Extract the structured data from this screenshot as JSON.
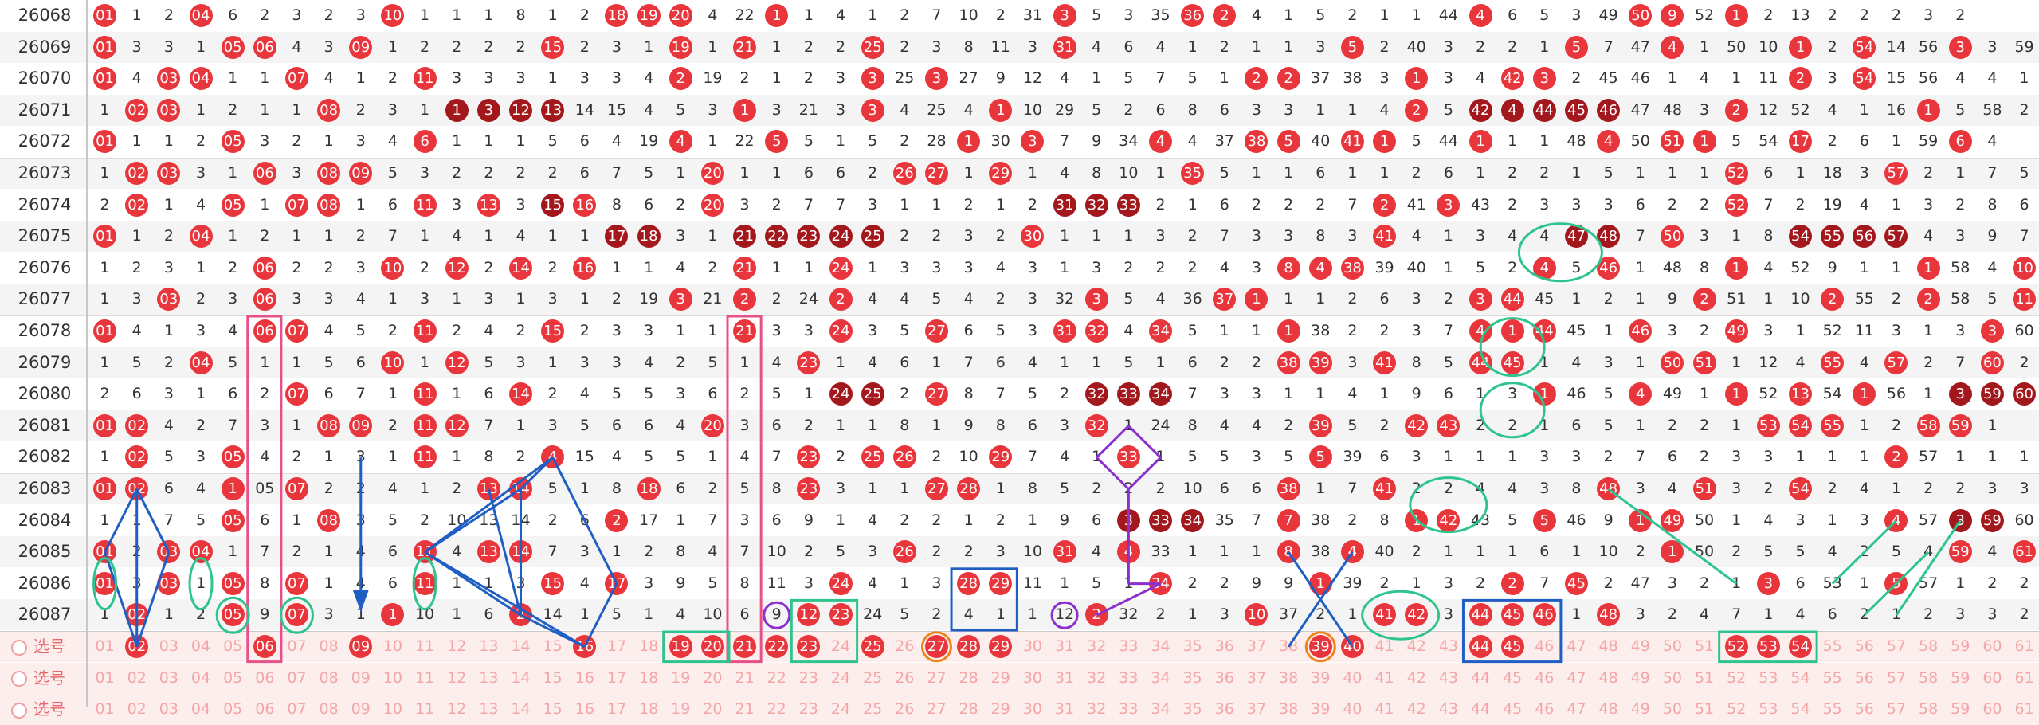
{
  "periods": [
    "26068",
    "26069",
    "26070",
    "26071",
    "26072",
    "26073",
    "26074",
    "26075",
    "26076",
    "26077",
    "26078",
    "26079",
    "26080",
    "26081",
    "26082",
    "26083",
    "26084",
    "26085",
    "26086",
    "26087"
  ],
  "rows": [
    [
      "01",
      "1",
      "2",
      "04",
      "6",
      "2",
      "3",
      "2",
      "3",
      "10",
      "1",
      "1",
      "1",
      "8",
      "1",
      "2",
      "18",
      "19",
      "20",
      "4",
      "22",
      "1",
      "1",
      "4",
      "1",
      "2",
      "7",
      "10",
      "2",
      "31",
      "3",
      "5",
      "3",
      "35",
      "36",
      "2",
      "4",
      "1",
      "5",
      "2",
      "1",
      "1",
      "44",
      "4",
      "6",
      "5",
      "3",
      "49",
      "50",
      "9",
      "52",
      "1",
      "2",
      "13",
      "2",
      "2",
      "2",
      "3",
      "2"
    ],
    [
      "01",
      "3",
      "3",
      "1",
      "05",
      "06",
      "4",
      "3",
      "09",
      "1",
      "2",
      "2",
      "2",
      "2",
      "15",
      "2",
      "3",
      "1",
      "19",
      "1",
      "21",
      "1",
      "2",
      "2",
      "25",
      "2",
      "3",
      "8",
      "11",
      "3",
      "31",
      "4",
      "6",
      "4",
      "1",
      "2",
      "1",
      "1",
      "3",
      "5",
      "2",
      "40",
      "3",
      "2",
      "2",
      "1",
      "5",
      "7",
      "47",
      "4",
      "1",
      "50",
      "10",
      "1",
      "2",
      "54",
      "14",
      "56",
      "3",
      "3",
      "59",
      "3",
      "1"
    ],
    [
      "01",
      "4",
      "03",
      "04",
      "1",
      "1",
      "07",
      "4",
      "1",
      "2",
      "11",
      "3",
      "3",
      "3",
      "1",
      "3",
      "3",
      "4",
      "2",
      "19",
      "2",
      "1",
      "2",
      "3",
      "3",
      "25",
      "3",
      "27",
      "9",
      "12",
      "4",
      "1",
      "5",
      "7",
      "5",
      "1",
      "2",
      "2",
      "37",
      "38",
      "3",
      "1",
      "3",
      "4",
      "42",
      "3",
      "2",
      "45",
      "46",
      "1",
      "4",
      "1",
      "11",
      "2",
      "3",
      "54",
      "15",
      "56",
      "4",
      "4",
      "1",
      "4",
      "2"
    ],
    [
      "1",
      "02",
      "03",
      "1",
      "2",
      "1",
      "1",
      "08",
      "2",
      "3",
      "1",
      "1",
      "3",
      "12",
      "13",
      "14",
      "15",
      "4",
      "5",
      "3",
      "1",
      "3",
      "21",
      "3",
      "3",
      "4",
      "25",
      "4",
      "1",
      "10",
      "29",
      "5",
      "2",
      "6",
      "8",
      "6",
      "3",
      "3",
      "1",
      "1",
      "4",
      "2",
      "5",
      "42",
      "4",
      "44",
      "45",
      "46",
      "47",
      "48",
      "3",
      "2",
      "12",
      "52",
      "4",
      "1",
      "16",
      "1",
      "5",
      "58",
      "2",
      "5",
      "3"
    ],
    [
      "01",
      "1",
      "1",
      "2",
      "05",
      "3",
      "2",
      "1",
      "3",
      "4",
      "6",
      "1",
      "1",
      "1",
      "5",
      "6",
      "4",
      "19",
      "4",
      "1",
      "22",
      "5",
      "5",
      "1",
      "5",
      "2",
      "28",
      "1",
      "30",
      "3",
      "7",
      "9",
      "34",
      "4",
      "4",
      "37",
      "38",
      "5",
      "40",
      "41",
      "1",
      "5",
      "44",
      "1",
      "1",
      "1",
      "48",
      "4",
      "50",
      "51",
      "1",
      "5",
      "54",
      "17",
      "2",
      "6",
      "1",
      "59",
      "6",
      "4"
    ],
    [
      "1",
      "02",
      "03",
      "3",
      "1",
      "06",
      "3",
      "08",
      "09",
      "5",
      "3",
      "2",
      "2",
      "2",
      "2",
      "6",
      "7",
      "5",
      "1",
      "20",
      "1",
      "1",
      "6",
      "6",
      "2",
      "26",
      "27",
      "1",
      "29",
      "1",
      "4",
      "8",
      "10",
      "1",
      "35",
      "5",
      "1",
      "1",
      "6",
      "1",
      "1",
      "2",
      "6",
      "1",
      "2",
      "2",
      "1",
      "5",
      "1",
      "1",
      "1",
      "52",
      "6",
      "1",
      "18",
      "3",
      "57",
      "2",
      "1",
      "7",
      "5"
    ],
    [
      "2",
      "02",
      "1",
      "4",
      "05",
      "1",
      "07",
      "08",
      "1",
      "6",
      "11",
      "3",
      "13",
      "3",
      "15",
      "16",
      "8",
      "6",
      "2",
      "20",
      "3",
      "2",
      "7",
      "7",
      "3",
      "1",
      "1",
      "2",
      "1",
      "2",
      "31",
      "32",
      "33",
      "2",
      "1",
      "6",
      "2",
      "2",
      "2",
      "7",
      "2",
      "41",
      "3",
      "43",
      "2",
      "3",
      "3",
      "3",
      "6",
      "2",
      "2",
      "52",
      "7",
      "2",
      "19",
      "4",
      "1",
      "3",
      "2",
      "8",
      "6"
    ],
    [
      "01",
      "1",
      "2",
      "04",
      "1",
      "2",
      "1",
      "1",
      "2",
      "7",
      "1",
      "4",
      "1",
      "4",
      "1",
      "1",
      "17",
      "18",
      "3",
      "1",
      "21",
      "22",
      "23",
      "24",
      "25",
      "2",
      "2",
      "3",
      "2",
      "30",
      "1",
      "1",
      "1",
      "3",
      "2",
      "7",
      "3",
      "3",
      "8",
      "3",
      "41",
      "4",
      "1",
      "3",
      "4",
      "4",
      "47",
      "48",
      "7",
      "50",
      "3",
      "1",
      "8",
      "54",
      "55",
      "56",
      "57",
      "4",
      "3",
      "9",
      "7"
    ],
    [
      "1",
      "2",
      "3",
      "1",
      "2",
      "06",
      "2",
      "2",
      "3",
      "10",
      "2",
      "12",
      "2",
      "14",
      "2",
      "16",
      "1",
      "1",
      "4",
      "2",
      "21",
      "1",
      "1",
      "24",
      "1",
      "3",
      "3",
      "3",
      "4",
      "3",
      "1",
      "3",
      "2",
      "2",
      "2",
      "4",
      "3",
      "8",
      "4",
      "38",
      "39",
      "40",
      "1",
      "5",
      "2",
      "4",
      "5",
      "46",
      "1",
      "48",
      "8",
      "1",
      "4",
      "52",
      "9",
      "1",
      "1",
      "1",
      "58",
      "4",
      "10",
      "61"
    ],
    [
      "1",
      "3",
      "03",
      "2",
      "3",
      "06",
      "3",
      "3",
      "4",
      "1",
      "3",
      "1",
      "3",
      "1",
      "3",
      "1",
      "2",
      "19",
      "3",
      "21",
      "2",
      "2",
      "24",
      "2",
      "4",
      "4",
      "5",
      "4",
      "2",
      "3",
      "32",
      "3",
      "5",
      "4",
      "36",
      "37",
      "1",
      "1",
      "1",
      "2",
      "6",
      "3",
      "2",
      "3",
      "44",
      "45",
      "1",
      "2",
      "1",
      "9",
      "2",
      "51",
      "1",
      "10",
      "2",
      "55",
      "2",
      "2",
      "58",
      "5",
      "11",
      "61"
    ],
    [
      "01",
      "4",
      "1",
      "3",
      "4",
      "06",
      "07",
      "4",
      "5",
      "2",
      "11",
      "2",
      "4",
      "2",
      "15",
      "2",
      "3",
      "3",
      "1",
      "1",
      "21",
      "3",
      "3",
      "24",
      "3",
      "5",
      "27",
      "6",
      "5",
      "3",
      "31",
      "32",
      "4",
      "34",
      "5",
      "1",
      "1",
      "1",
      "38",
      "2",
      "2",
      "3",
      "7",
      "4",
      "1",
      "44",
      "45",
      "1",
      "46",
      "3",
      "2",
      "49",
      "3",
      "1",
      "52",
      "11",
      "3",
      "1",
      "3",
      "3",
      "60",
      "1"
    ],
    [
      "1",
      "5",
      "2",
      "04",
      "5",
      "1",
      "1",
      "5",
      "6",
      "10",
      "1",
      "12",
      "5",
      "3",
      "1",
      "3",
      "3",
      "4",
      "2",
      "5",
      "1",
      "4",
      "23",
      "1",
      "4",
      "6",
      "1",
      "7",
      "6",
      "4",
      "1",
      "1",
      "5",
      "1",
      "6",
      "2",
      "2",
      "38",
      "39",
      "3",
      "41",
      "8",
      "5",
      "44",
      "45",
      "1",
      "4",
      "3",
      "1",
      "50",
      "51",
      "1",
      "12",
      "4",
      "55",
      "4",
      "57",
      "2",
      "7",
      "60",
      "2"
    ],
    [
      "2",
      "6",
      "3",
      "1",
      "6",
      "2",
      "07",
      "6",
      "7",
      "1",
      "11",
      "1",
      "6",
      "14",
      "2",
      "4",
      "5",
      "5",
      "3",
      "6",
      "2",
      "5",
      "1",
      "24",
      "25",
      "2",
      "27",
      "8",
      "7",
      "5",
      "2",
      "32",
      "33",
      "34",
      "7",
      "3",
      "3",
      "1",
      "1",
      "4",
      "1",
      "9",
      "6",
      "1",
      "3",
      "1",
      "46",
      "5",
      "4",
      "49",
      "1",
      "1",
      "52",
      "13",
      "54",
      "1",
      "56",
      "1",
      "3",
      "59",
      "60",
      "61"
    ],
    [
      "01",
      "02",
      "4",
      "2",
      "7",
      "3",
      "1",
      "08",
      "09",
      "2",
      "11",
      "12",
      "7",
      "1",
      "3",
      "5",
      "6",
      "6",
      "4",
      "20",
      "3",
      "6",
      "2",
      "1",
      "1",
      "8",
      "1",
      "9",
      "8",
      "6",
      "3",
      "32",
      "1",
      "24",
      "8",
      "4",
      "4",
      "2",
      "39",
      "5",
      "2",
      "42",
      "43",
      "2",
      "2",
      "1",
      "6",
      "5",
      "1",
      "2",
      "2",
      "1",
      "53",
      "54",
      "55",
      "1",
      "2",
      "58",
      "59",
      "1"
    ],
    [
      "1",
      "02",
      "5",
      "3",
      "05",
      "4",
      "2",
      "1",
      "3",
      "1",
      "11",
      "1",
      "8",
      "2",
      "4",
      "15",
      "4",
      "5",
      "5",
      "1",
      "4",
      "7",
      "23",
      "2",
      "25",
      "26",
      "2",
      "10",
      "29",
      "7",
      "4",
      "1",
      "33",
      "1",
      "5",
      "5",
      "3",
      "5",
      "5",
      "39",
      "6",
      "3",
      "1",
      "1",
      "1",
      "3",
      "3",
      "2",
      "7",
      "6",
      "2",
      "3",
      "3",
      "1",
      "1",
      "1",
      "2",
      "57",
      "1",
      "1",
      "1"
    ],
    [
      "01",
      "02",
      "6",
      "4",
      "1",
      "05",
      "07",
      "2",
      "2",
      "4",
      "1",
      "2",
      "13",
      "14",
      "5",
      "1",
      "8",
      "18",
      "6",
      "2",
      "5",
      "8",
      "23",
      "3",
      "1",
      "1",
      "27",
      "28",
      "1",
      "8",
      "5",
      "2",
      "2",
      "2",
      "10",
      "6",
      "6",
      "38",
      "1",
      "7",
      "41",
      "2",
      "2",
      "4",
      "4",
      "3",
      "8",
      "48",
      "3",
      "4",
      "51",
      "3",
      "2",
      "54",
      "2",
      "4",
      "1",
      "2",
      "2",
      "3",
      "3"
    ],
    [
      "1",
      "1",
      "7",
      "5",
      "05",
      "6",
      "1",
      "08",
      "3",
      "5",
      "2",
      "10",
      "13",
      "14",
      "2",
      "6",
      "2",
      "17",
      "1",
      "7",
      "3",
      "6",
      "9",
      "1",
      "4",
      "2",
      "2",
      "1",
      "2",
      "1",
      "9",
      "6",
      "3",
      "33",
      "34",
      "35",
      "7",
      "7",
      "38",
      "2",
      "8",
      "1",
      "42",
      "43",
      "5",
      "5",
      "46",
      "9",
      "1",
      "49",
      "50",
      "1",
      "4",
      "3",
      "1",
      "3",
      "4",
      "57",
      "3",
      "59",
      "60",
      "4"
    ],
    [
      "01",
      "2",
      "03",
      "04",
      "1",
      "7",
      "2",
      "1",
      "4",
      "6",
      "11",
      "4",
      "13",
      "14",
      "7",
      "3",
      "1",
      "2",
      "8",
      "4",
      "7",
      "10",
      "2",
      "5",
      "3",
      "26",
      "2",
      "2",
      "3",
      "10",
      "31",
      "4",
      "4",
      "33",
      "1",
      "1",
      "1",
      "8",
      "38",
      "4",
      "40",
      "2",
      "1",
      "1",
      "1",
      "6",
      "1",
      "10",
      "2",
      "1",
      "50",
      "2",
      "5",
      "5",
      "4",
      "2",
      "5",
      "4",
      "59",
      "4",
      "61"
    ],
    [
      "01",
      "3",
      "03",
      "1",
      "05",
      "8",
      "07",
      "1",
      "4",
      "6",
      "11",
      "1",
      "1",
      "3",
      "15",
      "4",
      "17",
      "3",
      "9",
      "5",
      "8",
      "11",
      "3",
      "24",
      "4",
      "1",
      "3",
      "28",
      "29",
      "11",
      "1",
      "5",
      "1",
      "34",
      "2",
      "2",
      "9",
      "9",
      "1",
      "39",
      "2",
      "1",
      "3",
      "2",
      "2",
      "7",
      "45",
      "2",
      "47",
      "3",
      "2",
      "1",
      "3",
      "6",
      "53",
      "1",
      "5",
      "57",
      "1",
      "2",
      "2",
      "1"
    ],
    [
      "1",
      "02",
      "1",
      "2",
      "05",
      "9",
      "07",
      "3",
      "1",
      "1",
      "10",
      "1",
      "6",
      "2",
      "14",
      "1",
      "5",
      "1",
      "4",
      "10",
      "6",
      "9",
      "12",
      "23",
      "24",
      "5",
      "2",
      "4",
      "1",
      "1",
      "12",
      "2",
      "32",
      "2",
      "1",
      "3",
      "10",
      "37",
      "2",
      "1",
      "41",
      "42",
      "3",
      "44",
      "45",
      "46",
      "1",
      "48",
      "3",
      "2",
      "4",
      "7",
      "1",
      "4",
      "6",
      "2",
      "1",
      "2",
      "3",
      "3",
      "2"
    ]
  ],
  "hits": [
    [
      1,
      4,
      10,
      17,
      18,
      19,
      22,
      31,
      35,
      36,
      44,
      49,
      50,
      52
    ],
    [
      1,
      5,
      6,
      9,
      15,
      19,
      21,
      25,
      31,
      40,
      47,
      50,
      54,
      56,
      59
    ],
    [
      1,
      3,
      4,
      7,
      11,
      19,
      25,
      27,
      37,
      38,
      42,
      45,
      46,
      54,
      56
    ],
    [
      2,
      3,
      8,
      12,
      13,
      14,
      15,
      21,
      25,
      29,
      42,
      44,
      45,
      46,
      47,
      48,
      52,
      58
    ],
    [
      1,
      5,
      11,
      19,
      22,
      28,
      30,
      34,
      37,
      38,
      40,
      41,
      44,
      48,
      50,
      51,
      54,
      59
    ],
    [
      2,
      3,
      6,
      8,
      9,
      20,
      26,
      27,
      29,
      35,
      52,
      57
    ],
    [
      2,
      5,
      7,
      8,
      11,
      13,
      15,
      16,
      20,
      31,
      32,
      33,
      41,
      43,
      52
    ],
    [
      1,
      4,
      17,
      18,
      21,
      22,
      23,
      24,
      25,
      30,
      41,
      47,
      48,
      50,
      54,
      55,
      56,
      57
    ],
    [
      6,
      10,
      12,
      14,
      16,
      21,
      24,
      38,
      39,
      40,
      46,
      48,
      52,
      58,
      61
    ],
    [
      3,
      6,
      19,
      21,
      24,
      32,
      36,
      37,
      44,
      45,
      51,
      55,
      58,
      61
    ],
    [
      1,
      6,
      7,
      11,
      15,
      21,
      24,
      27,
      31,
      32,
      34,
      38,
      44,
      45,
      46,
      49,
      52,
      60
    ],
    [
      4,
      10,
      12,
      23,
      38,
      39,
      41,
      44,
      45,
      50,
      51,
      55,
      57,
      60
    ],
    [
      7,
      11,
      14,
      24,
      25,
      27,
      32,
      33,
      34,
      46,
      49,
      52,
      54,
      56,
      59,
      60,
      61
    ],
    [
      1,
      2,
      8,
      9,
      11,
      12,
      20,
      32,
      39,
      42,
      43,
      53,
      54,
      55,
      58,
      59
    ],
    [
      2,
      5,
      11,
      15,
      23,
      25,
      26,
      29,
      33,
      39,
      57
    ],
    [
      1,
      2,
      5,
      7,
      13,
      14,
      18,
      23,
      27,
      28,
      38,
      41,
      48,
      51,
      54
    ],
    [
      5,
      8,
      17,
      33,
      34,
      35,
      38,
      42,
      43,
      46,
      49,
      50,
      57,
      59,
      60
    ],
    [
      1,
      3,
      4,
      11,
      13,
      14,
      26,
      31,
      33,
      38,
      40,
      50,
      59,
      61
    ],
    [
      1,
      3,
      5,
      7,
      11,
      15,
      17,
      24,
      28,
      29,
      34,
      39,
      45,
      47,
      53,
      57
    ],
    [
      2,
      5,
      7,
      10,
      14,
      23,
      24,
      32,
      37,
      41,
      42,
      44,
      45,
      46,
      48
    ]
  ],
  "selector": {
    "label": "选号",
    "numbers": [
      "01",
      "02",
      "03",
      "04",
      "05",
      "06",
      "07",
      "08",
      "09",
      "10",
      "11",
      "12",
      "13",
      "14",
      "15",
      "16",
      "17",
      "18",
      "19",
      "20",
      "21",
      "22",
      "23",
      "24",
      "25",
      "26",
      "27",
      "28",
      "29",
      "30",
      "31",
      "32",
      "33",
      "34",
      "35",
      "36",
      "37",
      "38",
      "39",
      "40",
      "41",
      "42",
      "43",
      "44",
      "45",
      "46",
      "47",
      "48",
      "49",
      "50",
      "51",
      "52",
      "53",
      "54",
      "55",
      "56",
      "57",
      "58",
      "59",
      "60",
      "61"
    ],
    "selected_row1": [
      "02",
      "06",
      "09",
      "16",
      "19",
      "20",
      "21",
      "22",
      "23",
      "25",
      "27",
      "28",
      "29",
      "39",
      "40",
      "44",
      "45",
      "52",
      "53",
      "54"
    ]
  },
  "colors": {
    "hit": "#e8363c",
    "repeat": "#a3181c",
    "green": "#2fc48d",
    "blue": "#1f5fc4",
    "pink": "#e8508a",
    "purple": "#8b2fd0",
    "orange": "#f0841c"
  }
}
